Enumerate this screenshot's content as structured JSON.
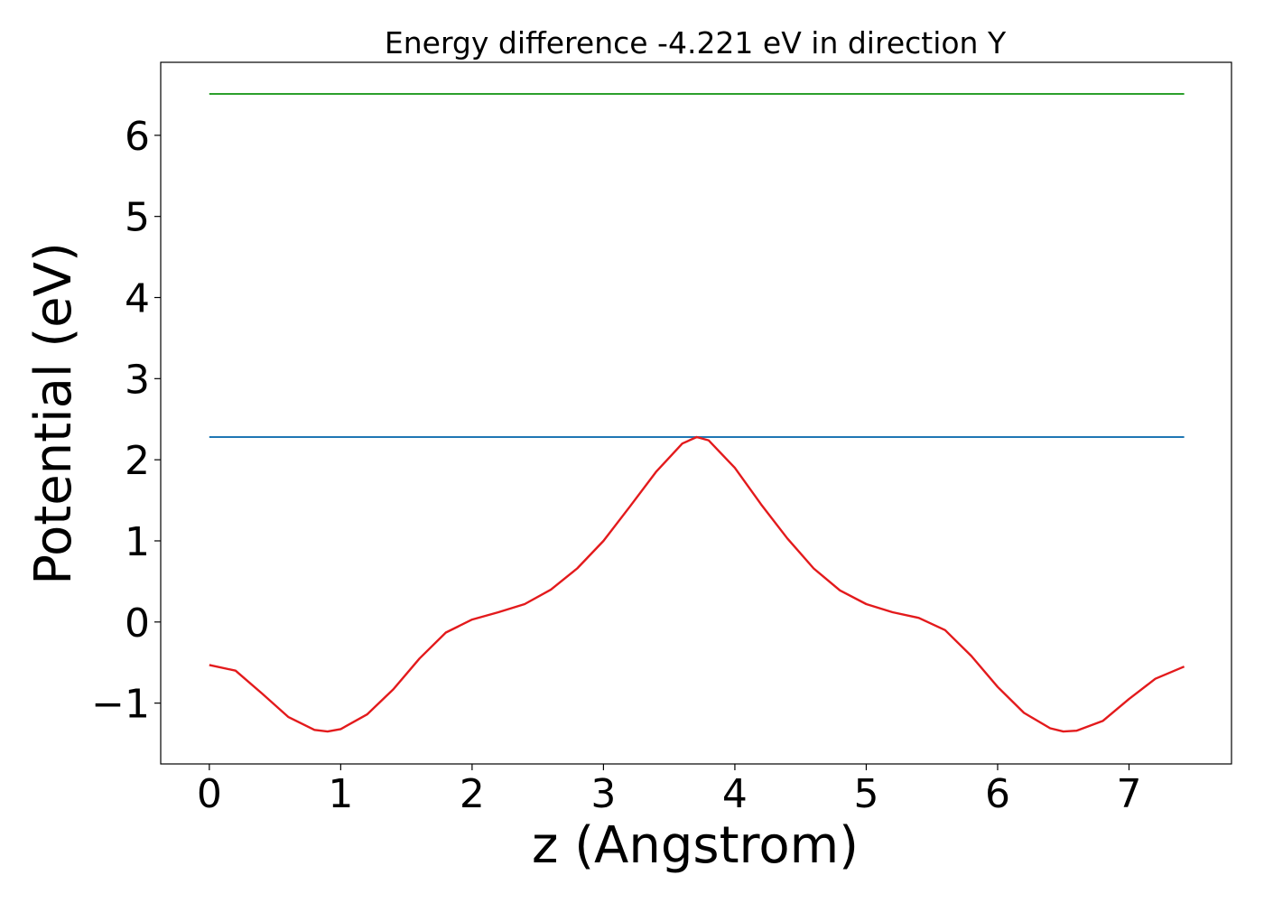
{
  "chart_data": {
    "type": "line",
    "title": "Energy difference -4.221 eV in direction Y",
    "xlabel": "z (Angstrom)",
    "ylabel": "Potential (eV)",
    "xlim": [
      -0.37,
      7.78
    ],
    "ylim": [
      -1.75,
      6.9
    ],
    "xticks": [
      0,
      1,
      2,
      3,
      4,
      5,
      6,
      7
    ],
    "xtick_labels": [
      "0",
      "1",
      "2",
      "3",
      "4",
      "5",
      "6",
      "7"
    ],
    "yticks": [
      -1,
      0,
      1,
      2,
      3,
      4,
      5,
      6
    ],
    "ytick_labels": [
      "−1",
      "0",
      "1",
      "2",
      "3",
      "4",
      "5",
      "6"
    ],
    "grid": false,
    "legend": false,
    "series": [
      {
        "color": "#2ca02c",
        "x": [
          0,
          7.42
        ],
        "y": [
          6.51,
          6.51
        ]
      },
      {
        "color": "#1f77b4",
        "x": [
          0,
          7.42
        ],
        "y": [
          2.28,
          2.28
        ]
      },
      {
        "color": "#e31a1c",
        "x": [
          0,
          0.2,
          0.4,
          0.6,
          0.8,
          0.9,
          1.0,
          1.2,
          1.4,
          1.6,
          1.8,
          2.0,
          2.2,
          2.4,
          2.6,
          2.8,
          3.0,
          3.2,
          3.4,
          3.6,
          3.71,
          3.8,
          4.0,
          4.2,
          4.4,
          4.6,
          4.8,
          5.0,
          5.2,
          5.4,
          5.6,
          5.8,
          6.0,
          6.2,
          6.4,
          6.5,
          6.6,
          6.8,
          7.0,
          7.2,
          7.42
        ],
        "y": [
          -0.53,
          -0.6,
          -0.88,
          -1.17,
          -1.33,
          -1.35,
          -1.32,
          -1.14,
          -0.83,
          -0.45,
          -0.13,
          0.03,
          0.12,
          0.22,
          0.4,
          0.66,
          1.0,
          1.42,
          1.85,
          2.2,
          2.28,
          2.24,
          1.9,
          1.45,
          1.03,
          0.66,
          0.39,
          0.22,
          0.12,
          0.05,
          -0.1,
          -0.42,
          -0.8,
          -1.12,
          -1.31,
          -1.35,
          -1.34,
          -1.22,
          -0.95,
          -0.7,
          -0.55
        ]
      }
    ]
  }
}
